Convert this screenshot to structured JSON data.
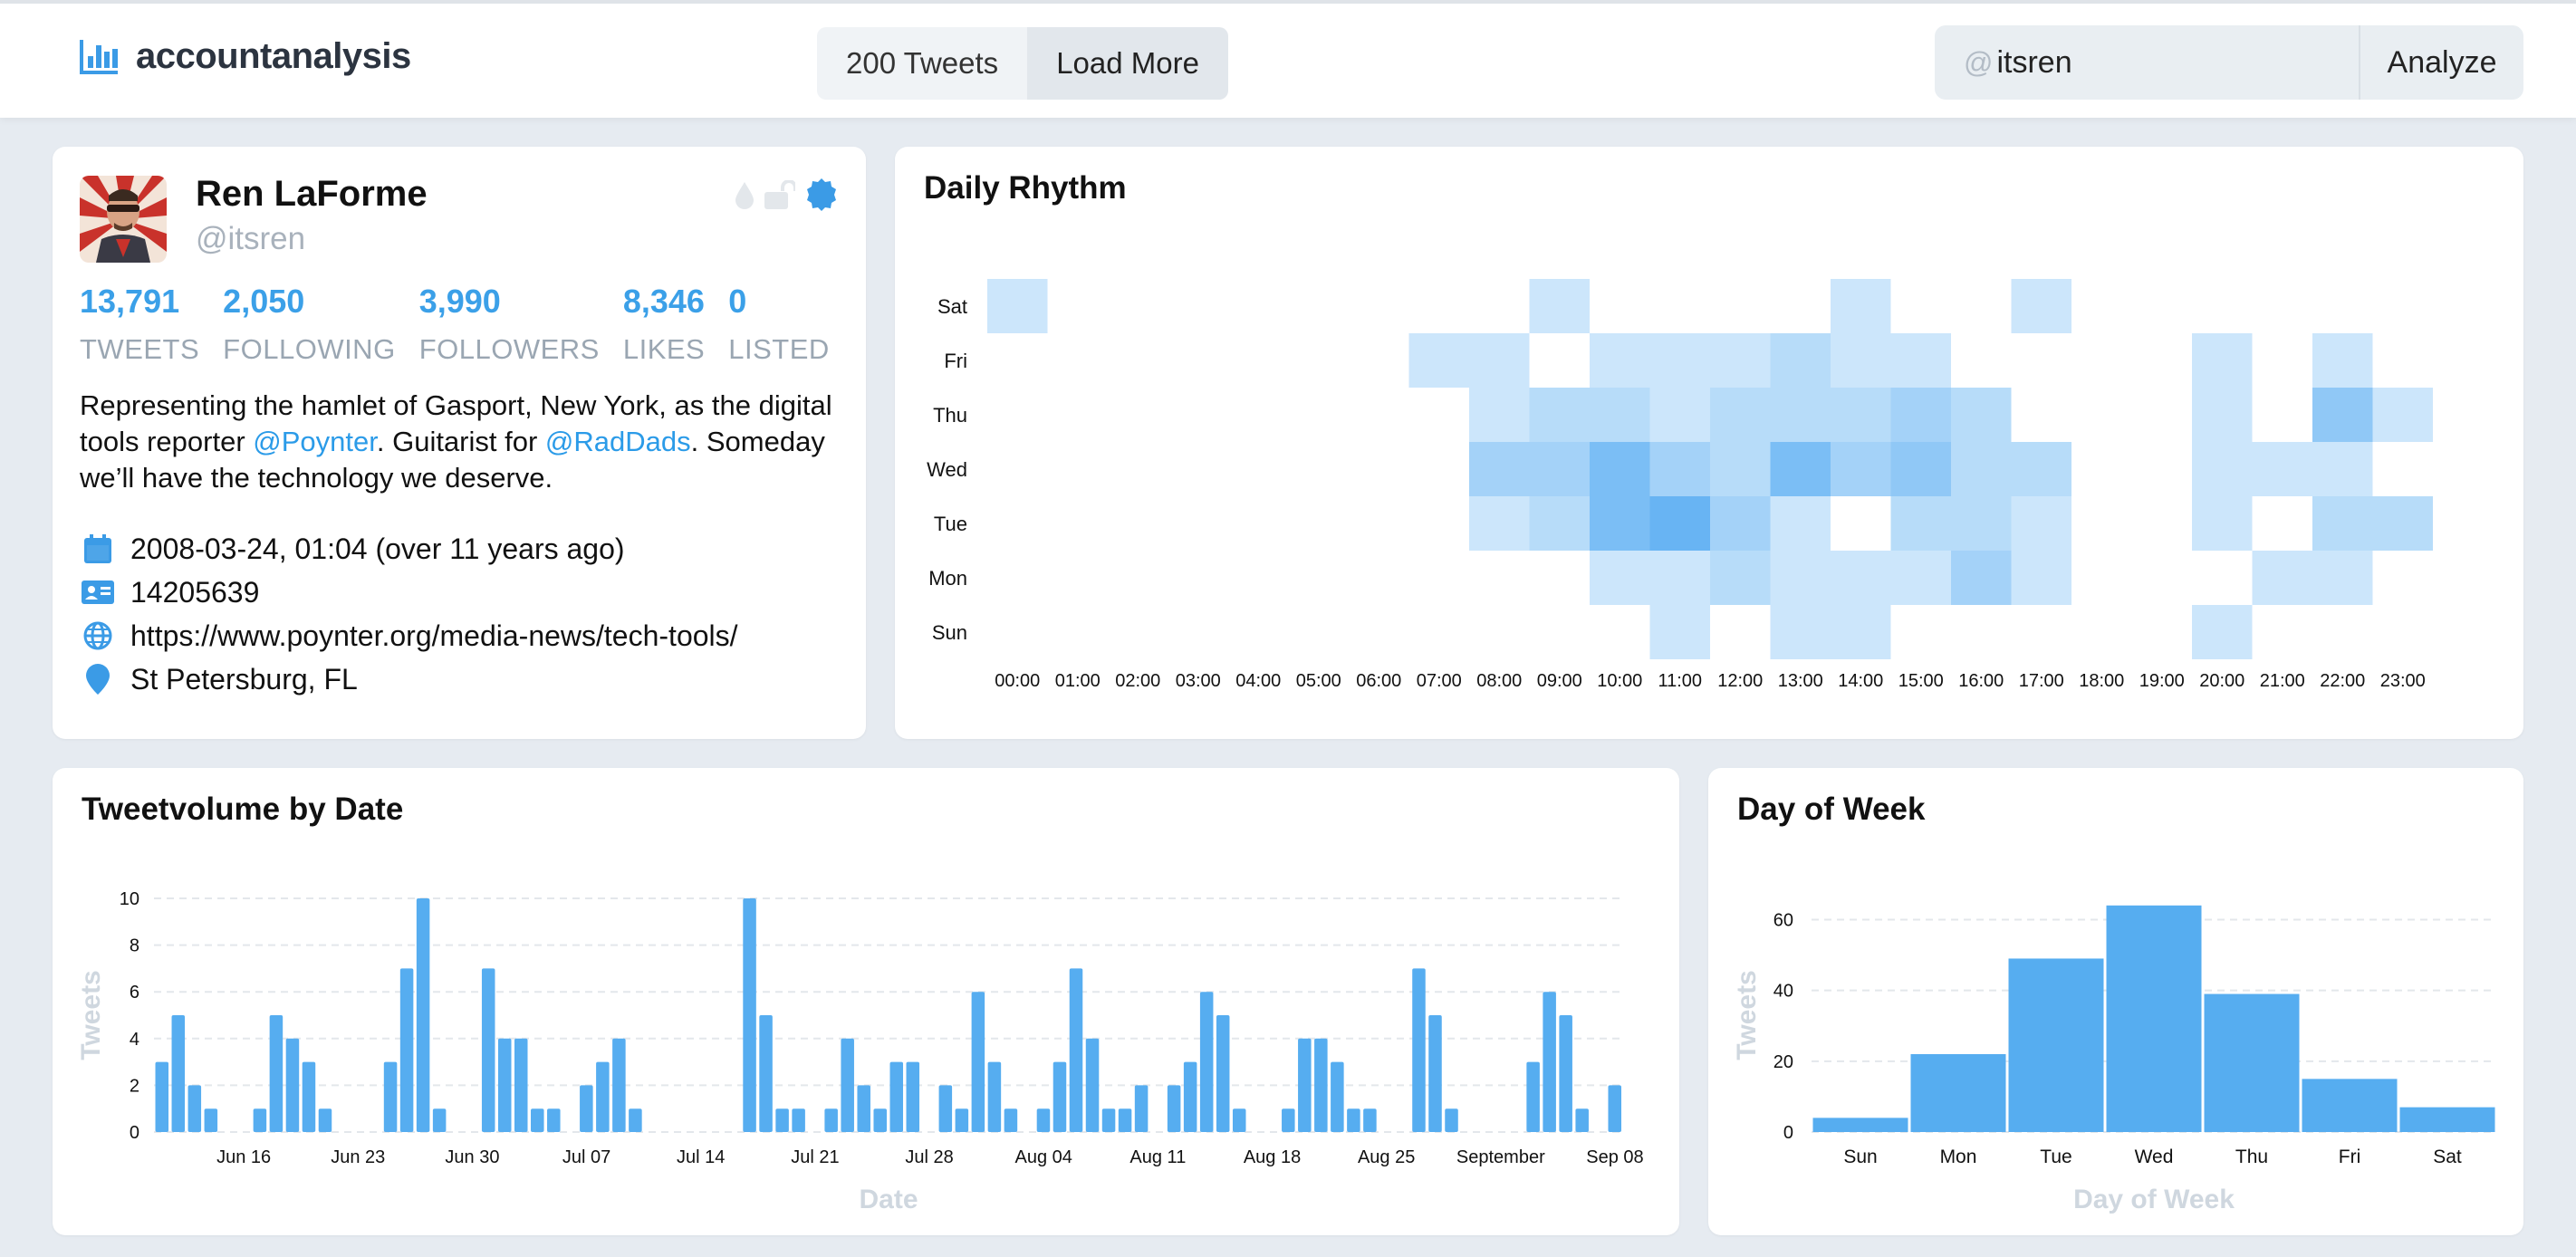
{
  "app": {
    "brand": "accountanalysis",
    "tweet_count_label": "200 Tweets",
    "load_more_label": "Load More",
    "search_prefix": "@",
    "search_value": "itsren",
    "analyze_label": "Analyze"
  },
  "profile": {
    "name": "Ren LaForme",
    "handle": "@itsren",
    "stats": [
      {
        "value": "13,791",
        "label": "TWEETS"
      },
      {
        "value": "2,050",
        "label": "FOLLOWING"
      },
      {
        "value": "3,990",
        "label": "FOLLOWERS"
      },
      {
        "value": "8,346",
        "label": "LIKES"
      },
      {
        "value": "0",
        "label": "LISTED"
      }
    ],
    "bio": {
      "p1": "Representing the hamlet of Gasport, New York, as the digital tools reporter ",
      "mention1": "@Poynter",
      "p2": ". Guitarist for ",
      "mention2": "@RadDads",
      "p3": ". Someday we’ll have the technology we deserve."
    },
    "joined": "2008-03-24, 01:04 (over 11 years ago)",
    "user_id": "14205639",
    "url": "https://www.poynter.org/media-news/tech-tools/",
    "location": "St Petersburg, FL",
    "icons": [
      "calendar-icon",
      "id-card-icon",
      "globe-icon",
      "location-pin-icon"
    ],
    "badge_icons": [
      "water-drop-icon",
      "unlocked-icon",
      "verified-icon"
    ]
  },
  "rhythm": {
    "title": "Daily Rhythm"
  },
  "volume": {
    "title": "Tweetvolume by Date"
  },
  "dow": {
    "title": "Day of Week"
  },
  "colors": {
    "accent": "#3ba0e8",
    "bar": "#56adf0",
    "heat": "#3d9ff0"
  },
  "chart_data": [
    {
      "type": "heatmap",
      "title": "Daily Rhythm",
      "x": [
        "00:00",
        "01:00",
        "02:00",
        "03:00",
        "04:00",
        "05:00",
        "06:00",
        "07:00",
        "08:00",
        "09:00",
        "10:00",
        "11:00",
        "12:00",
        "13:00",
        "14:00",
        "15:00",
        "16:00",
        "17:00",
        "18:00",
        "19:00",
        "20:00",
        "21:00",
        "22:00",
        "23:00"
      ],
      "y": [
        "Sat",
        "Fri",
        "Thu",
        "Wed",
        "Tue",
        "Mon",
        "Sun"
      ],
      "values": [
        [
          1,
          0,
          0,
          0,
          0,
          0,
          0,
          0,
          0,
          1,
          0,
          0,
          0,
          0,
          1,
          0,
          0,
          1,
          0,
          0,
          0,
          0,
          0,
          0
        ],
        [
          0,
          0,
          0,
          0,
          0,
          0,
          0,
          1,
          1,
          0,
          1,
          1,
          1,
          2,
          1,
          1,
          0,
          0,
          0,
          0,
          1,
          0,
          1,
          0
        ],
        [
          0,
          0,
          0,
          0,
          0,
          0,
          0,
          0,
          1,
          2,
          2,
          1,
          2,
          2,
          2,
          3,
          2,
          0,
          0,
          0,
          1,
          0,
          4,
          1
        ],
        [
          0,
          0,
          0,
          0,
          0,
          0,
          0,
          0,
          3,
          3,
          5,
          3,
          2,
          5,
          3,
          4,
          2,
          2,
          0,
          0,
          1,
          1,
          1,
          0
        ],
        [
          0,
          0,
          0,
          0,
          0,
          0,
          0,
          0,
          1,
          2,
          5,
          6,
          3,
          1,
          0,
          2,
          2,
          1,
          0,
          0,
          1,
          0,
          2,
          2
        ],
        [
          0,
          0,
          0,
          0,
          0,
          0,
          0,
          0,
          0,
          0,
          1,
          1,
          2,
          1,
          1,
          1,
          3,
          1,
          0,
          0,
          0,
          1,
          1,
          0
        ],
        [
          0,
          0,
          0,
          0,
          0,
          0,
          0,
          0,
          0,
          0,
          0,
          1,
          0,
          1,
          1,
          0,
          0,
          0,
          0,
          0,
          1,
          0,
          0,
          0
        ]
      ],
      "grid": false
    },
    {
      "type": "bar",
      "title": "Tweetvolume by Date",
      "xlabel": "Date",
      "ylabel": "Tweets",
      "ylim": [
        0,
        10
      ],
      "yticks": [
        0,
        2,
        4,
        6,
        8,
        10
      ],
      "x_start": "2019-06-11",
      "x_ticks": [
        "Jun 16",
        "Jun 23",
        "Jun 30",
        "Jul 07",
        "Jul 14",
        "Jul 21",
        "Jul 28",
        "Aug 04",
        "Aug 11",
        "Aug 18",
        "Aug 25",
        "September",
        "Sep 08"
      ],
      "values": [
        3,
        5,
        2,
        1,
        0,
        0,
        1,
        5,
        4,
        3,
        1,
        0,
        0,
        0,
        3,
        7,
        10,
        1,
        0,
        0,
        7,
        4,
        4,
        1,
        1,
        0,
        2,
        3,
        4,
        1,
        0,
        0,
        0,
        0,
        0,
        0,
        10,
        5,
        1,
        1,
        0,
        1,
        4,
        2,
        1,
        3,
        3,
        0,
        2,
        1,
        6,
        3,
        1,
        0,
        1,
        3,
        7,
        4,
        1,
        1,
        2,
        0,
        2,
        3,
        6,
        5,
        1,
        0,
        0,
        1,
        4,
        4,
        3,
        1,
        1,
        0,
        0,
        7,
        5,
        1,
        0,
        0,
        0,
        0,
        3,
        6,
        5,
        1,
        0,
        2
      ],
      "grid": true
    },
    {
      "type": "bar",
      "title": "Day of Week",
      "xlabel": "Day of Week",
      "ylabel": "Tweets",
      "categories": [
        "Sun",
        "Mon",
        "Tue",
        "Wed",
        "Thu",
        "Fri",
        "Sat"
      ],
      "values": [
        4,
        22,
        49,
        64,
        39,
        15,
        7
      ],
      "ylim": [
        0,
        66
      ],
      "yticks": [
        0,
        20,
        40,
        60
      ],
      "grid": true
    }
  ]
}
